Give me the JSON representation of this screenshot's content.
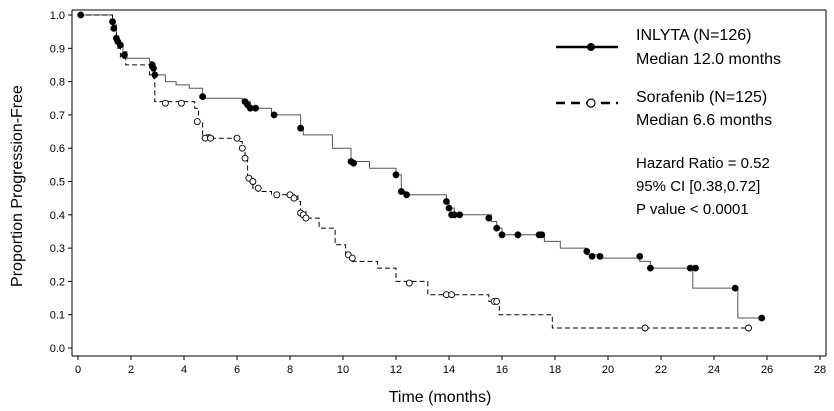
{
  "chart_data": {
    "type": "line",
    "subtype": "kaplan-meier step curve",
    "xlabel": "Time (months)",
    "ylabel": "Proportion Progression-Free",
    "xlim": [
      0,
      28
    ],
    "ylim": [
      0,
      1
    ],
    "xticks": [
      "0",
      "2",
      "4",
      "6",
      "8",
      "10",
      "12",
      "14",
      "16",
      "18",
      "20",
      "22",
      "24",
      "26",
      "28"
    ],
    "yticks": [
      "0.0",
      "0.1",
      "0.2",
      "0.3",
      "0.4",
      "0.5",
      "0.6",
      "0.7",
      "0.8",
      "0.9",
      "1.0"
    ],
    "grid": false,
    "legend_position": "top-right",
    "series": [
      {
        "name": "INLYTA (N=126)",
        "median_label": "Median 12.0 months",
        "line_style": "solid",
        "marker": "filled-circle",
        "step_points": [
          [
            0,
            1.0
          ],
          [
            1.2,
            1.0
          ],
          [
            1.3,
            0.98
          ],
          [
            1.4,
            0.96
          ],
          [
            1.45,
            0.93
          ],
          [
            1.5,
            0.91
          ],
          [
            1.7,
            0.89
          ],
          [
            1.85,
            0.87
          ],
          [
            2.7,
            0.86
          ],
          [
            2.8,
            0.84
          ],
          [
            2.9,
            0.82
          ],
          [
            3.3,
            0.8
          ],
          [
            3.7,
            0.79
          ],
          [
            4.2,
            0.78
          ],
          [
            4.7,
            0.75
          ],
          [
            5.2,
            0.75
          ],
          [
            6.2,
            0.74
          ],
          [
            6.5,
            0.72
          ],
          [
            7.3,
            0.7
          ],
          [
            8.4,
            0.66
          ],
          [
            8.5,
            0.64
          ],
          [
            9.6,
            0.6
          ],
          [
            10.3,
            0.56
          ],
          [
            11.0,
            0.54
          ],
          [
            12.0,
            0.52
          ],
          [
            12.2,
            0.47
          ],
          [
            12.35,
            0.46
          ],
          [
            13.9,
            0.44
          ],
          [
            14.0,
            0.42
          ],
          [
            14.2,
            0.4
          ],
          [
            15.6,
            0.38
          ],
          [
            15.8,
            0.36
          ],
          [
            16.0,
            0.34
          ],
          [
            17.3,
            0.34
          ],
          [
            17.6,
            0.32
          ],
          [
            18.2,
            0.3
          ],
          [
            19.2,
            0.28
          ],
          [
            19.6,
            0.27
          ],
          [
            21.2,
            0.26
          ],
          [
            21.6,
            0.24
          ],
          [
            23.1,
            0.24
          ],
          [
            23.2,
            0.18
          ],
          [
            24.8,
            0.18
          ],
          [
            24.9,
            0.09
          ],
          [
            25.8,
            0.09
          ]
        ],
        "censored": [
          [
            0.1,
            1.0
          ],
          [
            1.3,
            0.98
          ],
          [
            1.35,
            0.96
          ],
          [
            1.45,
            0.93
          ],
          [
            1.5,
            0.92
          ],
          [
            1.6,
            0.91
          ],
          [
            1.75,
            0.88
          ],
          [
            2.8,
            0.85
          ],
          [
            2.85,
            0.84
          ],
          [
            2.9,
            0.82
          ],
          [
            4.7,
            0.755
          ],
          [
            6.3,
            0.74
          ],
          [
            6.4,
            0.73
          ],
          [
            6.5,
            0.72
          ],
          [
            6.7,
            0.72
          ],
          [
            7.4,
            0.7
          ],
          [
            8.4,
            0.66
          ],
          [
            10.3,
            0.56
          ],
          [
            10.4,
            0.555
          ],
          [
            12.0,
            0.52
          ],
          [
            12.2,
            0.47
          ],
          [
            12.4,
            0.46
          ],
          [
            13.9,
            0.44
          ],
          [
            14.0,
            0.42
          ],
          [
            14.1,
            0.4
          ],
          [
            14.2,
            0.4
          ],
          [
            14.4,
            0.4
          ],
          [
            15.5,
            0.39
          ],
          [
            15.8,
            0.36
          ],
          [
            16.0,
            0.34
          ],
          [
            16.6,
            0.34
          ],
          [
            17.4,
            0.34
          ],
          [
            17.5,
            0.34
          ],
          [
            19.2,
            0.29
          ],
          [
            19.4,
            0.275
          ],
          [
            19.7,
            0.275
          ],
          [
            21.2,
            0.275
          ],
          [
            21.6,
            0.24
          ],
          [
            23.1,
            0.24
          ],
          [
            23.3,
            0.24
          ],
          [
            24.8,
            0.18
          ],
          [
            25.8,
            0.09
          ]
        ]
      },
      {
        "name": "Sorafenib (N=125)",
        "median_label": "Median 6.6 months",
        "line_style": "dashed",
        "marker": "open-circle",
        "step_points": [
          [
            0,
            1.0
          ],
          [
            1.2,
            1.0
          ],
          [
            1.3,
            0.97
          ],
          [
            1.45,
            0.93
          ],
          [
            1.5,
            0.9
          ],
          [
            1.6,
            0.87
          ],
          [
            1.8,
            0.85
          ],
          [
            2.7,
            0.82
          ],
          [
            2.85,
            0.81
          ],
          [
            2.9,
            0.74
          ],
          [
            4.4,
            0.72
          ],
          [
            4.55,
            0.68
          ],
          [
            4.7,
            0.64
          ],
          [
            5.1,
            0.63
          ],
          [
            6.0,
            0.62
          ],
          [
            6.2,
            0.6
          ],
          [
            6.3,
            0.57
          ],
          [
            6.4,
            0.51
          ],
          [
            6.6,
            0.48
          ],
          [
            6.8,
            0.47
          ],
          [
            7.3,
            0.46
          ],
          [
            8.3,
            0.44
          ],
          [
            8.4,
            0.41
          ],
          [
            8.6,
            0.39
          ],
          [
            9.1,
            0.36
          ],
          [
            9.7,
            0.31
          ],
          [
            10.1,
            0.28
          ],
          [
            10.3,
            0.26
          ],
          [
            11.3,
            0.24
          ],
          [
            12.0,
            0.2
          ],
          [
            13.2,
            0.16
          ],
          [
            14.0,
            0.16
          ],
          [
            15.5,
            0.14
          ],
          [
            15.9,
            0.1
          ],
          [
            17.9,
            0.06
          ],
          [
            25.3,
            0.06
          ]
        ],
        "censored": [
          [
            3.3,
            0.735
          ],
          [
            3.9,
            0.735
          ],
          [
            4.5,
            0.68
          ],
          [
            4.8,
            0.63
          ],
          [
            5.0,
            0.63
          ],
          [
            6.0,
            0.63
          ],
          [
            6.2,
            0.6
          ],
          [
            6.3,
            0.57
          ],
          [
            6.45,
            0.51
          ],
          [
            6.6,
            0.5
          ],
          [
            6.8,
            0.48
          ],
          [
            7.5,
            0.46
          ],
          [
            8.0,
            0.46
          ],
          [
            8.15,
            0.45
          ],
          [
            8.4,
            0.405
          ],
          [
            8.5,
            0.4
          ],
          [
            8.6,
            0.39
          ],
          [
            10.2,
            0.28
          ],
          [
            10.35,
            0.27
          ],
          [
            12.5,
            0.195
          ],
          [
            13.9,
            0.16
          ],
          [
            14.1,
            0.16
          ],
          [
            15.7,
            0.14
          ],
          [
            15.8,
            0.14
          ],
          [
            21.4,
            0.06
          ],
          [
            25.3,
            0.06
          ]
        ]
      }
    ],
    "annotations": [
      "Hazard Ratio = 0.52",
      "95% CI [0.38,0.72]",
      "P value < 0.0001"
    ]
  }
}
